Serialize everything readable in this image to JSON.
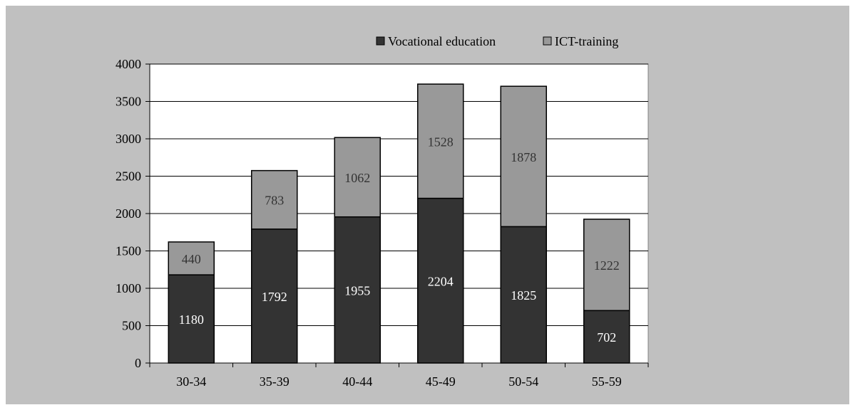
{
  "chart_data": {
    "type": "bar",
    "stacked": true,
    "categories": [
      "30-34",
      "35-39",
      "40-44",
      "45-49",
      "50-54",
      "55-59"
    ],
    "series": [
      {
        "name": "Vocational education",
        "values": [
          1180,
          1792,
          1955,
          2204,
          1825,
          702
        ],
        "color": "#333333",
        "label_color": "#ffffff"
      },
      {
        "name": "ICT-training",
        "values": [
          440,
          783,
          1062,
          1528,
          1878,
          1222
        ],
        "color": "#999999",
        "label_color": "#333333"
      }
    ],
    "ylim": [
      0,
      4000
    ],
    "yticks": [
      0,
      500,
      1000,
      1500,
      2000,
      2500,
      3000,
      3500,
      4000
    ],
    "grid": true,
    "legend_position": "top-right",
    "plot_background": "#ffffff",
    "chart_background": "#c0c0c0"
  }
}
